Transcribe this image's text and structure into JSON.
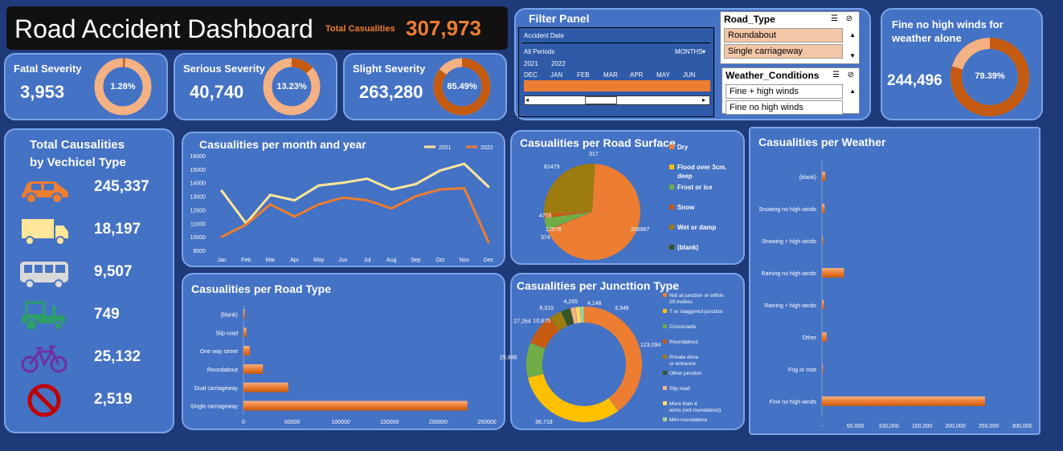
{
  "header": {
    "title": "Road Accident Dashboard",
    "total_label": "Total Casualities",
    "total_value": "307,973"
  },
  "severity": [
    {
      "label": "Fatal Severity",
      "value": "3,953",
      "pct": "1.28%",
      "frac": 0.0128
    },
    {
      "label": "Serious Severity",
      "value": "40,740",
      "pct": "13.23%",
      "frac": 0.1323
    },
    {
      "label": "Slight Severity",
      "value": "263,280",
      "pct": "85.49%",
      "frac": 0.8549
    }
  ],
  "fine": {
    "label": "Fine no high winds for weather alone",
    "value": "244,496",
    "pct": "79.39%",
    "frac": 0.7939
  },
  "filter": {
    "title": "Filter Panel",
    "timeline": {
      "label": "Accident Date",
      "period": "All Periods",
      "unit": "MONTHS",
      "years": [
        "2021",
        "2022"
      ],
      "months": [
        "DEC",
        "JAN",
        "FEB",
        "MAR",
        "APR",
        "MAY",
        "JUN"
      ]
    },
    "road_type": {
      "title": "Road_Type",
      "items": [
        "Roundabout",
        "Single carriageway"
      ]
    },
    "weather": {
      "title": "Weather_Conditions",
      "items": [
        "Fine + high winds",
        "Fine no high winds"
      ]
    }
  },
  "vehicles": {
    "title_line1": "Total Causalities",
    "title_line2": "by Vechicel Type",
    "items": [
      {
        "icon": "car-icon",
        "value": "245,337",
        "color": "#ed7d31"
      },
      {
        "icon": "truck-icon",
        "value": "18,197",
        "color": "#ffe699"
      },
      {
        "icon": "bus-icon",
        "value": "9,507",
        "color": "#d9d9d9"
      },
      {
        "icon": "tractor-icon",
        "value": "749",
        "color": "#2e9e6b"
      },
      {
        "icon": "bicycle-icon",
        "value": "25,132",
        "color": "#7030a0"
      },
      {
        "icon": "no-entry-icon",
        "value": "2,519",
        "color": "#c00000"
      }
    ]
  },
  "colors": {
    "orange": "#ed7d31",
    "yellow": "#ffe699",
    "dark_orange": "#c55a11",
    "panel": "#4472c4"
  },
  "chart_data": [
    {
      "type": "line",
      "title": "Casualities per month and year",
      "x": [
        "Jan",
        "Feb",
        "Mar",
        "Apr",
        "May",
        "Jun",
        "Jul",
        "Aug",
        "Sep",
        "Oct",
        "Nov",
        "Dec"
      ],
      "series": [
        {
          "name": "2021",
          "values": [
            13400,
            11000,
            13100,
            12700,
            13800,
            14000,
            14300,
            13500,
            13900,
            14900,
            15400,
            13700
          ]
        },
        {
          "name": "2022",
          "values": [
            10000,
            10900,
            12400,
            11500,
            12400,
            12900,
            12700,
            12100,
            13000,
            13500,
            13600,
            9600
          ]
        }
      ],
      "ylim": [
        9000,
        16000
      ],
      "yticks": [
        "9000",
        "10000",
        "11000",
        "12000",
        "13000",
        "14000",
        "15000",
        "16000"
      ]
    },
    {
      "type": "pie",
      "title": "Casualities per Road Surface",
      "categories": [
        "Dry",
        "Flood over 3cm. deep",
        "Frost or ice",
        "Snow",
        "Wet or damp",
        "(blank)"
      ],
      "values": [
        208967,
        317,
        12078,
        4758,
        81479,
        374
      ],
      "colors": [
        "#ed7d31",
        "#ffc000",
        "#70ad47",
        "#c55a11",
        "#9e7b0f",
        "#375623"
      ]
    },
    {
      "type": "bar",
      "title": "Casualities per Road Type",
      "categories": [
        "(blank)",
        "Slip road",
        "One way street",
        "Roundabout",
        "Dual carriageway",
        "Single carriageway"
      ],
      "values": [
        1500,
        3100,
        6500,
        20000,
        46000,
        230000
      ],
      "xlim": [
        0,
        250000
      ],
      "xticks": [
        "0",
        "50000",
        "100000",
        "150000",
        "200000",
        "250000"
      ]
    },
    {
      "type": "pie",
      "title": "Casualities per Juncttion Type",
      "categories": [
        "Not at junction or within 20 metres",
        "T or staggered junction",
        "Crossroads",
        "Roundabout",
        "Private drive or entrance",
        "Other junction",
        "Slip road",
        "More than 4 arms (not roundabout)",
        "Mini-roundabout"
      ],
      "values": [
        123094,
        96718,
        29948,
        27264,
        10875,
        8315,
        4265,
        4148,
        3346
      ],
      "labels": [
        "123,094",
        "96,718",
        "29,948",
        "27,264",
        "10,875",
        "8,315",
        "4,265",
        "4,148",
        "3,346"
      ],
      "colors": [
        "#ed7d31",
        "#ffc000",
        "#70ad47",
        "#c55a11",
        "#9e7b0f",
        "#375623",
        "#f4b183",
        "#ffd966",
        "#a9d18e"
      ]
    },
    {
      "type": "bar",
      "title": "Casualities per Weather",
      "categories": [
        "(blank)",
        "Snowing no high winds",
        "Snowing + high winds",
        "Raining no high winds",
        "Raining + high winds",
        "Other",
        "Fog or mist",
        "Fine no high winds"
      ],
      "values": [
        5000,
        4000,
        1500,
        33000,
        3000,
        7000,
        1500,
        244496
      ],
      "xlim": [
        0,
        300000
      ],
      "xticks": [
        "-",
        "50,000",
        "100,000",
        "150,000",
        "200,000",
        "250,000",
        "300,000"
      ]
    }
  ]
}
